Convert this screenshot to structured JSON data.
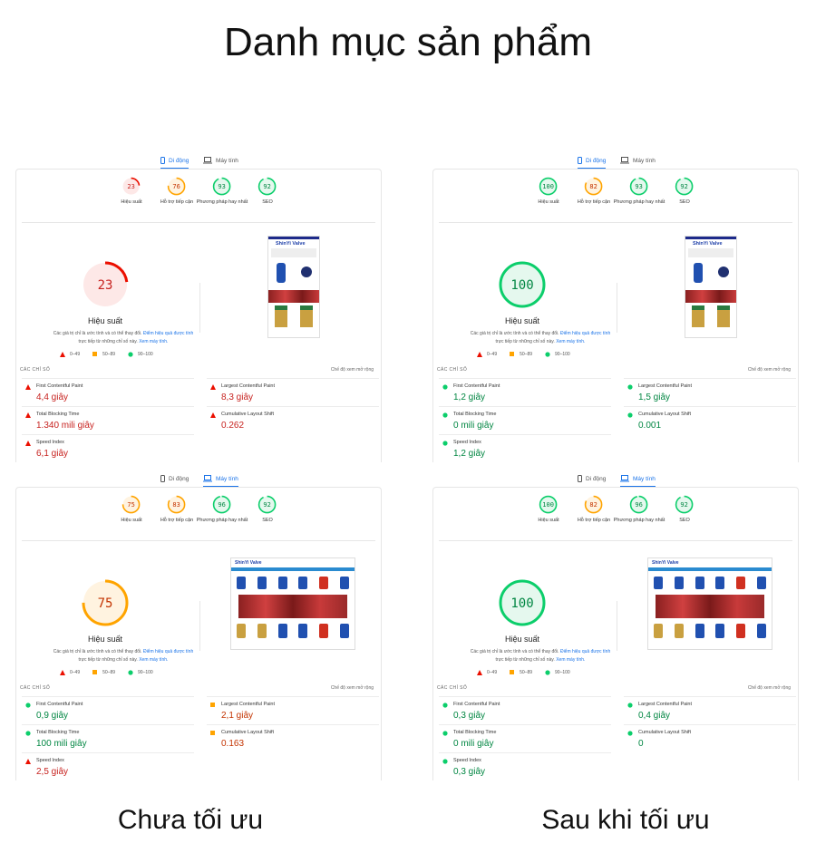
{
  "title": "Danh mục sản phẩm",
  "captions": {
    "left": "Chưa tối ưu",
    "right": "Sau khi tối ưu"
  },
  "colors": {
    "fail": "#eb0f00",
    "average": "#ffa400",
    "pass": "#0cce6b",
    "fail_text": "#c7221f",
    "average_text": "#c33300",
    "pass_text": "#018642",
    "tab_active": "#1a73e8"
  },
  "common": {
    "tab_mobile": "Di động",
    "tab_desktop": "Máy tính",
    "category_labels": [
      "Hiệu suất",
      "Hỗ trợ tiếp cận",
      "Phương pháp hay nhất",
      "SEO"
    ],
    "perf_title": "Hiệu suất",
    "desc_text": "Các giá trị chỉ là ước tính và có thể thay đổi. ",
    "desc_link1": "Điểm hiệu quả được tính",
    "desc_text2": " trực tiếp từ những chỉ số này. ",
    "desc_link2": "Xem máy tính.",
    "legend": [
      "0–49",
      "50–89",
      "90–100"
    ],
    "metrics_header": "CÁC CHỈ SỐ",
    "expand_view": "Chế độ xem mở rộng",
    "screenshot_brand": "ShinYi Valve"
  },
  "panels": [
    {
      "active_tab": "mobile",
      "scores": [
        23,
        76,
        93,
        92
      ],
      "metrics": [
        {
          "label": "First Contentful Paint",
          "value": "4,4 giây",
          "status": "fail"
        },
        {
          "label": "Largest Contentful Paint",
          "value": "8,3 giây",
          "status": "fail"
        },
        {
          "label": "Total Blocking Time",
          "value": "1.340 mili giây",
          "status": "fail"
        },
        {
          "label": "Cumulative Layout Shift",
          "value": "0.262",
          "status": "fail"
        },
        {
          "label": "Speed Index",
          "value": "6,1 giây",
          "status": "fail"
        }
      ]
    },
    {
      "active_tab": "mobile",
      "scores": [
        100,
        82,
        93,
        92
      ],
      "metrics": [
        {
          "label": "First Contentful Paint",
          "value": "1,2 giây",
          "status": "pass"
        },
        {
          "label": "Largest Contentful Paint",
          "value": "1,5 giây",
          "status": "pass"
        },
        {
          "label": "Total Blocking Time",
          "value": "0 mili giây",
          "status": "pass"
        },
        {
          "label": "Cumulative Layout Shift",
          "value": "0.001",
          "status": "pass"
        },
        {
          "label": "Speed Index",
          "value": "1,2 giây",
          "status": "pass"
        }
      ]
    },
    {
      "active_tab": "desktop",
      "scores": [
        75,
        83,
        96,
        92
      ],
      "metrics": [
        {
          "label": "First Contentful Paint",
          "value": "0,9 giây",
          "status": "pass"
        },
        {
          "label": "Largest Contentful Paint",
          "value": "2,1 giây",
          "status": "average"
        },
        {
          "label": "Total Blocking Time",
          "value": "100 mili giây",
          "status": "pass"
        },
        {
          "label": "Cumulative Layout Shift",
          "value": "0.163",
          "status": "average"
        },
        {
          "label": "Speed Index",
          "value": "2,5 giây",
          "status": "fail"
        }
      ]
    },
    {
      "active_tab": "desktop",
      "scores": [
        100,
        82,
        96,
        92
      ],
      "metrics": [
        {
          "label": "First Contentful Paint",
          "value": "0,3 giây",
          "status": "pass"
        },
        {
          "label": "Largest Contentful Paint",
          "value": "0,4 giây",
          "status": "pass"
        },
        {
          "label": "Total Blocking Time",
          "value": "0 mili giây",
          "status": "pass"
        },
        {
          "label": "Cumulative Layout Shift",
          "value": "0",
          "status": "pass"
        },
        {
          "label": "Speed Index",
          "value": "0,3 giây",
          "status": "pass"
        }
      ]
    }
  ]
}
